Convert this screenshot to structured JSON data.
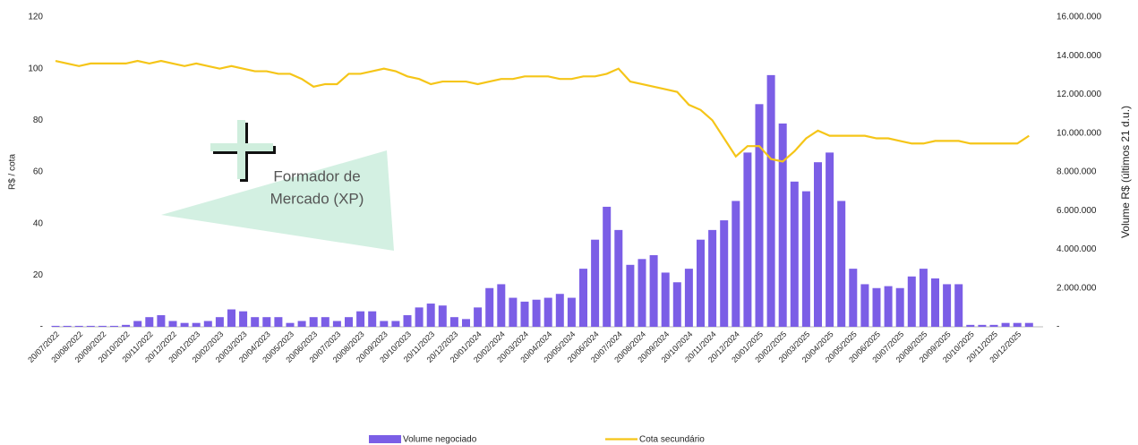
{
  "chart_data": {
    "type": "bar_line",
    "categories": [
      "20/07/2022",
      null,
      "20/08/2022",
      null,
      "20/09/2022",
      null,
      "20/10/2022",
      null,
      "20/11/2022",
      null,
      "20/12/2022",
      null,
      "20/01/2023",
      null,
      "20/02/2023",
      null,
      "20/03/2023",
      null,
      "20/04/2023",
      null,
      "20/05/2023",
      null,
      "20/06/2023",
      null,
      "20/07/2023",
      null,
      "20/08/2023",
      null,
      "20/09/2023",
      null,
      "20/10/2023",
      null,
      "20/11/2023",
      null,
      "20/12/2023",
      null,
      "20/01/2024",
      null,
      "20/02/2024",
      null,
      "20/03/2024",
      null,
      "20/04/2024",
      null,
      "20/05/2024",
      null,
      "20/06/2024",
      null,
      "20/07/2024",
      null,
      "20/08/2024",
      null,
      "20/09/2024",
      null,
      "20/10/2024",
      null,
      "20/11/2024",
      null,
      "20/12/2024",
      null,
      "20/01/2025",
      null,
      "20/02/2025",
      null,
      "20/03/2025",
      null,
      "20/04/2025",
      null,
      "20/05/2025",
      null,
      "20/06/2025",
      null,
      "20/07/2025",
      null,
      "20/08/2025",
      null,
      "20/09/2025",
      null,
      "20/10/2025",
      null,
      "20/11/2025",
      null,
      "20/12/2025",
      null
    ],
    "series": [
      {
        "name": "Volume negociado",
        "type": "bar",
        "axis": "y2",
        "color": "#7b5ee6",
        "values": [
          50000,
          50000,
          50000,
          50000,
          50000,
          50000,
          100000,
          300000,
          500000,
          600000,
          300000,
          200000,
          200000,
          300000,
          500000,
          900000,
          800000,
          500000,
          500000,
          500000,
          200000,
          300000,
          500000,
          500000,
          300000,
          500000,
          800000,
          800000,
          300000,
          300000,
          600000,
          1000000,
          1200000,
          1100000,
          500000,
          400000,
          1000000,
          2000000,
          2200000,
          1500000,
          1300000,
          1400000,
          1500000,
          1700000,
          1500000,
          3000000,
          4500000,
          6200000,
          5000000,
          3200000,
          3500000,
          3700000,
          2800000,
          2300000,
          3000000,
          4500000,
          5000000,
          5500000,
          6500000,
          9000000,
          11500000,
          13000000,
          10500000,
          7500000,
          7000000,
          8500000,
          9000000,
          6500000,
          3000000,
          2200000,
          2000000,
          2100000,
          2000000,
          2600000,
          3000000,
          2500000,
          2200000,
          2200000,
          100000,
          100000,
          100000,
          200000,
          200000,
          200000
        ]
      },
      {
        "name": "Cota secundário",
        "type": "line",
        "color": "#f5c518",
        "values": [
          103,
          102,
          101,
          102,
          102,
          102,
          102,
          103,
          102,
          103,
          102,
          101,
          102,
          101,
          100,
          101,
          100,
          99,
          99,
          98,
          98,
          96,
          93,
          94,
          94,
          98,
          98,
          99,
          100,
          99,
          97,
          96,
          94,
          95,
          95,
          95,
          94,
          95,
          96,
          96,
          97,
          97,
          97,
          96,
          96,
          97,
          97,
          98,
          100,
          95,
          94,
          93,
          92,
          91,
          86,
          84,
          80,
          73,
          66,
          70,
          70,
          65,
          64,
          68,
          73,
          76,
          74,
          74,
          74,
          74,
          73,
          73,
          72,
          71,
          71,
          72,
          72,
          72,
          71,
          71,
          71,
          71,
          71,
          74
        ]
      }
    ],
    "ylabel": "R$ / cota",
    "y2label": "Volume R$ (últimos 21 d.u.)",
    "ylim": [
      0,
      120
    ],
    "yticks": [
      {
        "value": 0,
        "label": "-"
      },
      20,
      40,
      60,
      80,
      100,
      120
    ],
    "y2lim": [
      0,
      16000000
    ],
    "y2ticks": [
      {
        "value": 0,
        "label": "-"
      },
      {
        "value": 2000000,
        "label": "2.000.000"
      },
      {
        "value": 4000000,
        "label": "4.000.000"
      },
      {
        "value": 6000000,
        "label": "6.000.000"
      },
      {
        "value": 8000000,
        "label": "8.000.000"
      },
      {
        "value": 10000000,
        "label": "10.000.000"
      },
      {
        "value": 12000000,
        "label": "12.000.000"
      },
      {
        "value": 14000000,
        "label": "14.000.000"
      },
      {
        "value": 16000000,
        "label": "16.000.000"
      }
    ],
    "annotation": [
      "Formador de",
      "Mercado (XP)"
    ],
    "legend": "bottom"
  }
}
